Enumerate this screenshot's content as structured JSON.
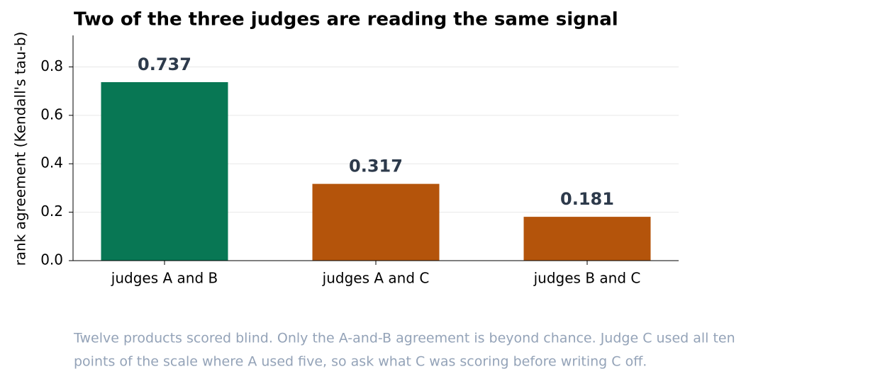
{
  "chart_data": {
    "type": "bar",
    "title": "Two of the three judges are reading the same signal",
    "y_label": "rank agreement (Kendall's tau-b)",
    "categories": [
      "judges A and B",
      "judges A and C",
      "judges B and C"
    ],
    "values": [
      0.737,
      0.317,
      0.181
    ],
    "colors": [
      "#087754",
      "#b4540b",
      "#b4540b"
    ],
    "ylim": [
      0,
      0.93
    ],
    "yticks": [
      {
        "value": 0,
        "label": "0.0"
      },
      0.2,
      0.4,
      0.6,
      0.8
    ],
    "grid": true,
    "note": [
      "Twelve products scored blind. Only the A-and-B agreement is beyond chance. Judge C used all ten",
      "points of the scale where A used five, so ask what C was scoring before writing C off."
    ]
  }
}
